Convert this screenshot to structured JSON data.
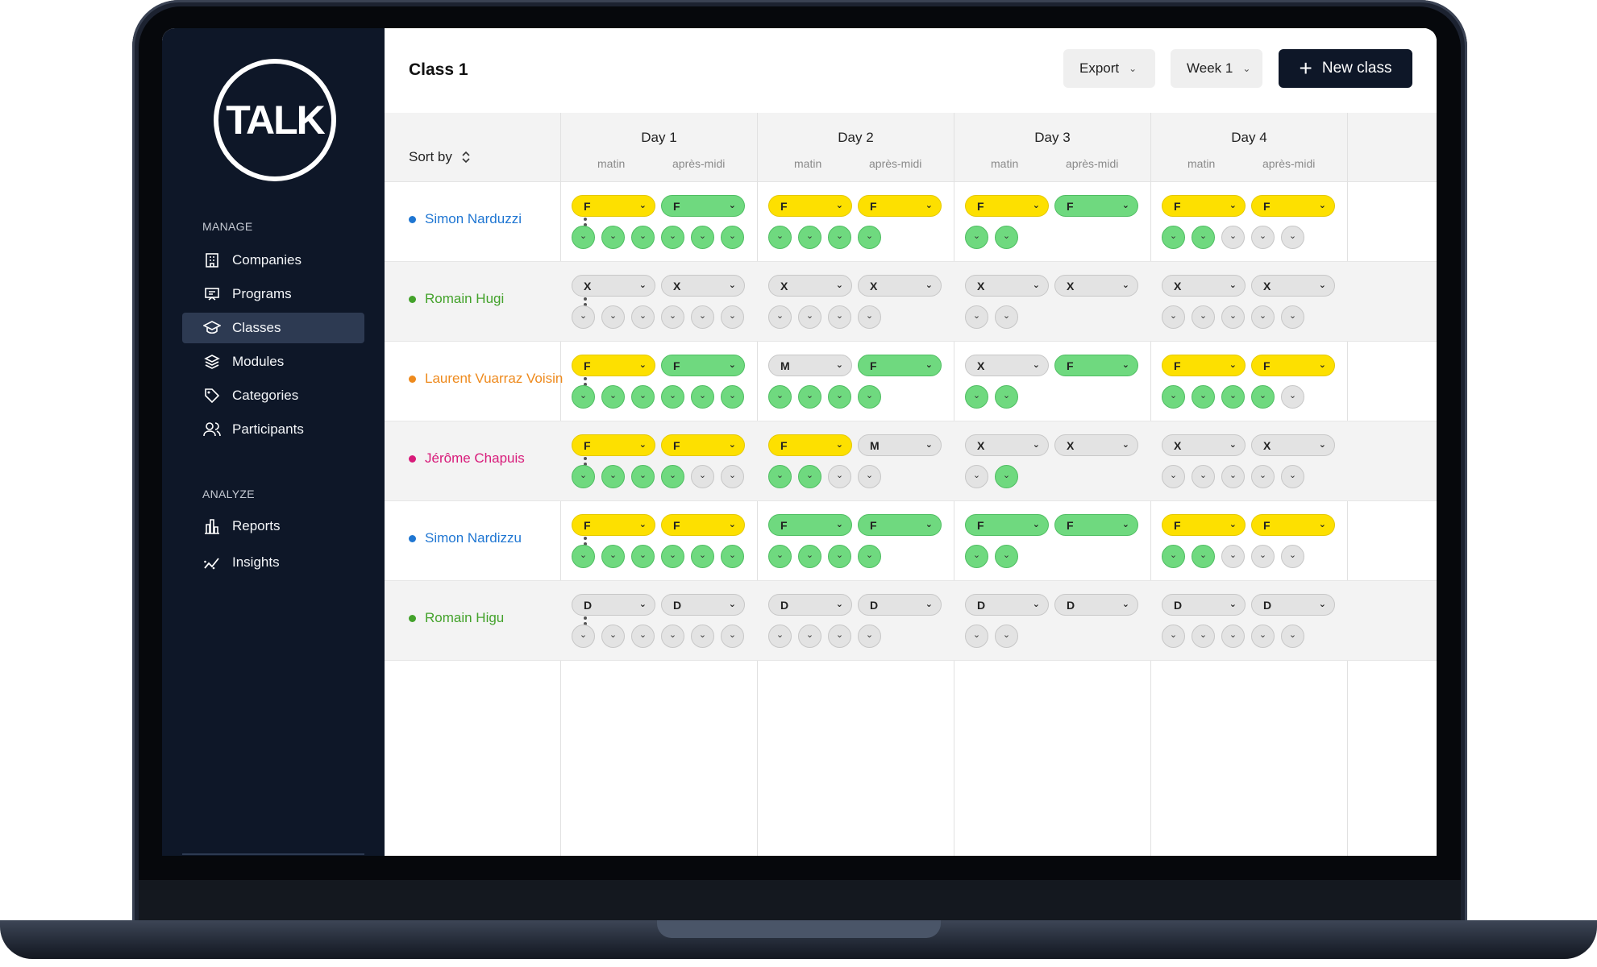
{
  "sidebar": {
    "logo_text": "TALK",
    "manage_label": "MANAGE",
    "analyze_label": "ANALYZE",
    "manage_items": [
      {
        "label": "Companies",
        "icon": "building-icon"
      },
      {
        "label": "Programs",
        "icon": "presentation-icon"
      },
      {
        "label": "Classes",
        "icon": "graduation-cap-icon",
        "active": true
      },
      {
        "label": "Modules",
        "icon": "layers-icon"
      },
      {
        "label": "Categories",
        "icon": "tag-icon"
      },
      {
        "label": "Participants",
        "icon": "users-icon"
      }
    ],
    "analyze_items": [
      {
        "label": "Reports",
        "icon": "bar-chart-icon"
      },
      {
        "label": "Insights",
        "icon": "trend-icon"
      }
    ]
  },
  "header": {
    "title": "Class 1",
    "export_label": "Export",
    "week_label": "Week 1",
    "new_class_label": "New class"
  },
  "table": {
    "sort_label": "Sort by",
    "morning_label": "matin",
    "afternoon_label": "après-midi",
    "days": [
      "Day 1",
      "Day 2",
      "Day 3",
      "Day 4"
    ],
    "colors": {
      "yellow": "#fde000",
      "green": "#6fd97f",
      "grey": "#e3e3e3"
    },
    "participants": [
      {
        "name": "Simon Narduzzi",
        "color": "#1f76d2",
        "days": [
          {
            "pills": [
              [
                "F",
                "yellow"
              ],
              [
                "F",
                "green"
              ]
            ],
            "circles": [
              "green",
              "green",
              "green",
              "green",
              "green",
              "green"
            ]
          },
          {
            "pills": [
              [
                "F",
                "yellow"
              ],
              [
                "F",
                "yellow"
              ]
            ],
            "circles": [
              "green",
              "green",
              "green",
              "green"
            ]
          },
          {
            "pills": [
              [
                "F",
                "yellow"
              ],
              [
                "F",
                "green"
              ]
            ],
            "circles": [
              "green",
              "green"
            ]
          },
          {
            "pills": [
              [
                "F",
                "yellow"
              ],
              [
                "F",
                "yellow"
              ]
            ],
            "circles": [
              "green",
              "green",
              "grey",
              "grey",
              "grey"
            ]
          }
        ]
      },
      {
        "name": "Romain Hugi",
        "color": "#43a22b",
        "days": [
          {
            "pills": [
              [
                "X",
                "grey"
              ],
              [
                "X",
                "grey"
              ]
            ],
            "circles": [
              "grey",
              "grey",
              "grey",
              "grey",
              "grey",
              "grey"
            ]
          },
          {
            "pills": [
              [
                "X",
                "grey"
              ],
              [
                "X",
                "grey"
              ]
            ],
            "circles": [
              "grey",
              "grey",
              "grey",
              "grey"
            ]
          },
          {
            "pills": [
              [
                "X",
                "grey"
              ],
              [
                "X",
                "grey"
              ]
            ],
            "circles": [
              "grey",
              "grey"
            ]
          },
          {
            "pills": [
              [
                "X",
                "grey"
              ],
              [
                "X",
                "grey"
              ]
            ],
            "circles": [
              "grey",
              "grey",
              "grey",
              "grey",
              "grey"
            ]
          }
        ]
      },
      {
        "name": "Laurent Vuarraz Voisin",
        "color": "#ee8a1d",
        "days": [
          {
            "pills": [
              [
                "F",
                "yellow"
              ],
              [
                "F",
                "green"
              ]
            ],
            "circles": [
              "green",
              "green",
              "green",
              "green",
              "green",
              "green"
            ]
          },
          {
            "pills": [
              [
                "M",
                "grey"
              ],
              [
                "F",
                "green"
              ]
            ],
            "circles": [
              "green",
              "green",
              "green",
              "green"
            ]
          },
          {
            "pills": [
              [
                "X",
                "grey"
              ],
              [
                "F",
                "green"
              ]
            ],
            "circles": [
              "green",
              "green"
            ]
          },
          {
            "pills": [
              [
                "F",
                "yellow"
              ],
              [
                "F",
                "yellow"
              ]
            ],
            "circles": [
              "green",
              "green",
              "green",
              "green",
              "grey"
            ]
          }
        ]
      },
      {
        "name": "Jérôme Chapuis",
        "color": "#d81b7a",
        "days": [
          {
            "pills": [
              [
                "F",
                "yellow"
              ],
              [
                "F",
                "yellow"
              ]
            ],
            "circles": [
              "green",
              "green",
              "green",
              "green",
              "grey",
              "grey"
            ]
          },
          {
            "pills": [
              [
                "F",
                "yellow"
              ],
              [
                "M",
                "grey"
              ]
            ],
            "circles": [
              "green",
              "green",
              "grey",
              "grey"
            ]
          },
          {
            "pills": [
              [
                "X",
                "grey"
              ],
              [
                "X",
                "grey"
              ]
            ],
            "circles": [
              "grey",
              "green"
            ]
          },
          {
            "pills": [
              [
                "X",
                "grey"
              ],
              [
                "X",
                "grey"
              ]
            ],
            "circles": [
              "grey",
              "grey",
              "grey",
              "grey",
              "grey"
            ]
          }
        ]
      },
      {
        "name": "Simon Nardizzu",
        "color": "#1f76d2",
        "days": [
          {
            "pills": [
              [
                "F",
                "yellow"
              ],
              [
                "F",
                "yellow"
              ]
            ],
            "circles": [
              "green",
              "green",
              "green",
              "green",
              "green",
              "green"
            ]
          },
          {
            "pills": [
              [
                "F",
                "green"
              ],
              [
                "F",
                "green"
              ]
            ],
            "circles": [
              "green",
              "green",
              "green",
              "green"
            ]
          },
          {
            "pills": [
              [
                "F",
                "green"
              ],
              [
                "F",
                "green"
              ]
            ],
            "circles": [
              "green",
              "green"
            ]
          },
          {
            "pills": [
              [
                "F",
                "yellow"
              ],
              [
                "F",
                "yellow"
              ]
            ],
            "circles": [
              "green",
              "green",
              "grey",
              "grey",
              "grey"
            ]
          }
        ]
      },
      {
        "name": "Romain Higu",
        "color": "#43a22b",
        "days": [
          {
            "pills": [
              [
                "D",
                "grey"
              ],
              [
                "D",
                "grey"
              ]
            ],
            "circles": [
              "grey",
              "grey",
              "grey",
              "grey",
              "grey",
              "grey"
            ]
          },
          {
            "pills": [
              [
                "D",
                "grey"
              ],
              [
                "D",
                "grey"
              ]
            ],
            "circles": [
              "grey",
              "grey",
              "grey",
              "grey"
            ]
          },
          {
            "pills": [
              [
                "D",
                "grey"
              ],
              [
                "D",
                "grey"
              ]
            ],
            "circles": [
              "grey",
              "grey"
            ]
          },
          {
            "pills": [
              [
                "D",
                "grey"
              ],
              [
                "D",
                "grey"
              ]
            ],
            "circles": [
              "grey",
              "grey",
              "grey",
              "grey",
              "grey"
            ]
          }
        ]
      }
    ]
  }
}
